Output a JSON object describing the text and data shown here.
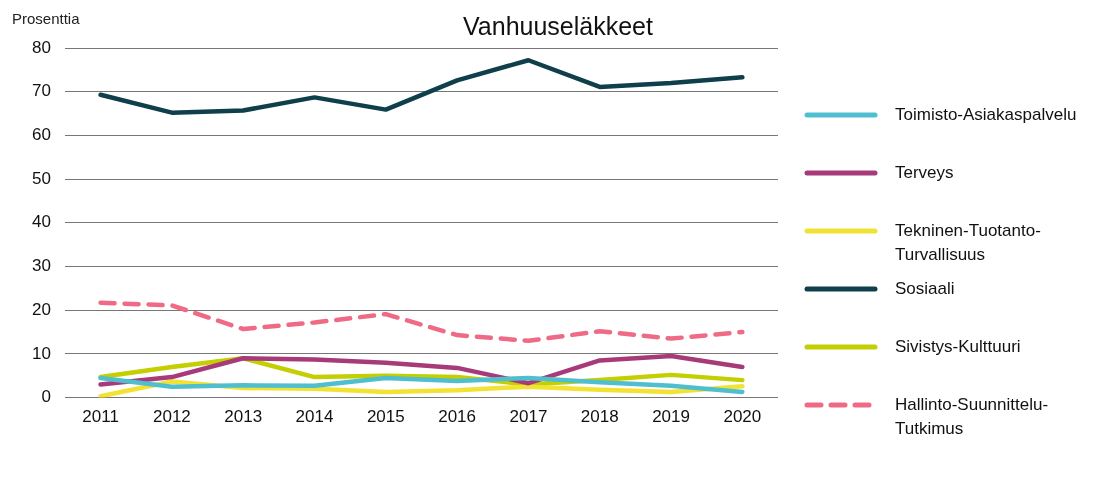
{
  "chart_data": {
    "type": "line",
    "title": "Vanhuuseläkkeet",
    "ylabel": "Prosenttia",
    "categories": [
      "2011",
      "2012",
      "2013",
      "2014",
      "2015",
      "2016",
      "2017",
      "2018",
      "2019",
      "2020"
    ],
    "series": [
      {
        "name": "Toimisto-Asiakaspalvelu",
        "color": "#4fbfcf",
        "values": [
          4.5,
          2.5,
          2.8,
          2.7,
          4.5,
          3.8,
          4.5,
          3.5,
          2.7,
          1.3
        ]
      },
      {
        "name": "Terveys",
        "color": "#a73b7a",
        "values": [
          3,
          4.7,
          9,
          8.7,
          8,
          6.8,
          3.3,
          8.5,
          9.5,
          7
        ]
      },
      {
        "name": "Tekninen-Tuotanto-Turvallisuus",
        "color": "#f2e234",
        "values": [
          0.3,
          3.7,
          2.2,
          2,
          1.3,
          1.7,
          2.5,
          1.8,
          1.3,
          2.6
        ]
      },
      {
        "name": "Sosiaali",
        "color": "#0e3f4a",
        "values": [
          69.3,
          65.2,
          65.7,
          68.7,
          65.9,
          72.6,
          77.2,
          71.1,
          72,
          73.3
        ]
      },
      {
        "name": "Sivistys-Kulttuuri",
        "color": "#c3cf00",
        "values": [
          4.7,
          7,
          9,
          4.7,
          5,
          4.7,
          3,
          4,
          5.2,
          4
        ]
      },
      {
        "name": "Hallinto-Suunnittelu-Tutkimus",
        "color": "#ef6a85",
        "line_style": "dashed",
        "values": [
          21.7,
          21.1,
          15.7,
          17.2,
          19.1,
          14.3,
          13,
          15.2,
          13.5,
          15
        ]
      }
    ],
    "ylim": [
      0,
      80
    ],
    "yticks": [
      0,
      10,
      20,
      30,
      40,
      50,
      60,
      70,
      80
    ],
    "grid": "y",
    "legend": "right",
    "marker": "none"
  }
}
